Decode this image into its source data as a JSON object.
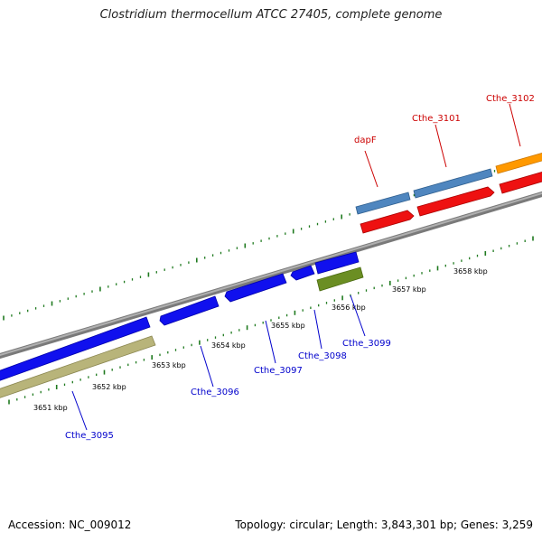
{
  "title": "Clostridium thermocellum ATCC 27405, complete genome",
  "footer": {
    "accession": "Accession: NC_009012",
    "stats": "Topology: circular; Length: 3,843,301 bp; Genes: 3,259"
  },
  "colors": {
    "backbone": "#8c8c8c",
    "tick": "#1f7a1f",
    "forward_cds_top": "#4f86bf",
    "forward_red": "#ee1111",
    "forward_orange": "#ff9900",
    "reverse_blue": "#1010ee",
    "reverse_olive": "#6b8e23",
    "reverse_khaki": "#b8b47a",
    "label_forward": "#cc0000",
    "label_reverse": "#0000cc"
  },
  "kbp_labels": [
    "3651 kbp",
    "3652 kbp",
    "3653 kbp",
    "3654 kbp",
    "3655 kbp",
    "3656 kbp",
    "3657 kbp",
    "3658 kbp"
  ],
  "gene_labels": {
    "forward": [
      "dapF",
      "Cthe_3101",
      "Cthe_3102"
    ],
    "reverse": [
      "Cthe_3095",
      "Cthe_3096",
      "Cthe_3097",
      "Cthe_3098",
      "Cthe_3099"
    ]
  }
}
